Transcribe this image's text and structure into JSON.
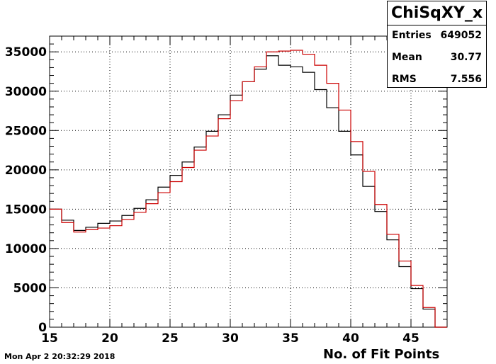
{
  "chart_data": {
    "type": "histogram",
    "title": "ChiSqXY_x",
    "xlabel": "No. of Fit Points",
    "ylabel": "",
    "xlim": [
      15,
      48
    ],
    "ylim": [
      0,
      37000
    ],
    "grid": true,
    "x_ticks": [
      15,
      20,
      25,
      30,
      35,
      40,
      45
    ],
    "y_ticks": [
      0,
      5000,
      10000,
      15000,
      20000,
      25000,
      30000,
      35000
    ],
    "bin_edges": [
      15,
      16,
      17,
      18,
      19,
      20,
      21,
      22,
      23,
      24,
      25,
      26,
      27,
      28,
      29,
      30,
      31,
      32,
      33,
      34,
      35,
      36,
      37,
      38,
      39,
      40,
      41,
      42,
      43,
      44,
      45,
      46,
      47,
      48
    ],
    "series": [
      {
        "color": "#000000",
        "values": [
          15000,
          13600,
          12300,
          12700,
          13200,
          13500,
          14200,
          15100,
          16200,
          17800,
          19300,
          21000,
          22900,
          24900,
          27000,
          29500,
          31200,
          32800,
          34500,
          33300,
          33100,
          32400,
          30200,
          27900,
          24900,
          21900,
          17900,
          14700,
          11100,
          7700,
          4900,
          2300,
          0
        ]
      },
      {
        "color": "#cc0000",
        "values": [
          15000,
          13300,
          12100,
          12400,
          12600,
          12900,
          13700,
          14600,
          15700,
          17100,
          18500,
          20300,
          22500,
          24300,
          26500,
          28800,
          31200,
          33100,
          35000,
          35100,
          35200,
          34700,
          33300,
          31000,
          27600,
          23600,
          19800,
          15600,
          11800,
          8400,
          5300,
          2500,
          0
        ]
      }
    ]
  },
  "stats": {
    "title": "ChiSqXY_x",
    "rows": [
      {
        "key": "Entries",
        "value": "649052"
      },
      {
        "key": "Mean",
        "value": "30.77"
      },
      {
        "key": "RMS",
        "value": "7.556"
      }
    ]
  },
  "timestamp": "Mon Apr  2 20:32:29 2018"
}
